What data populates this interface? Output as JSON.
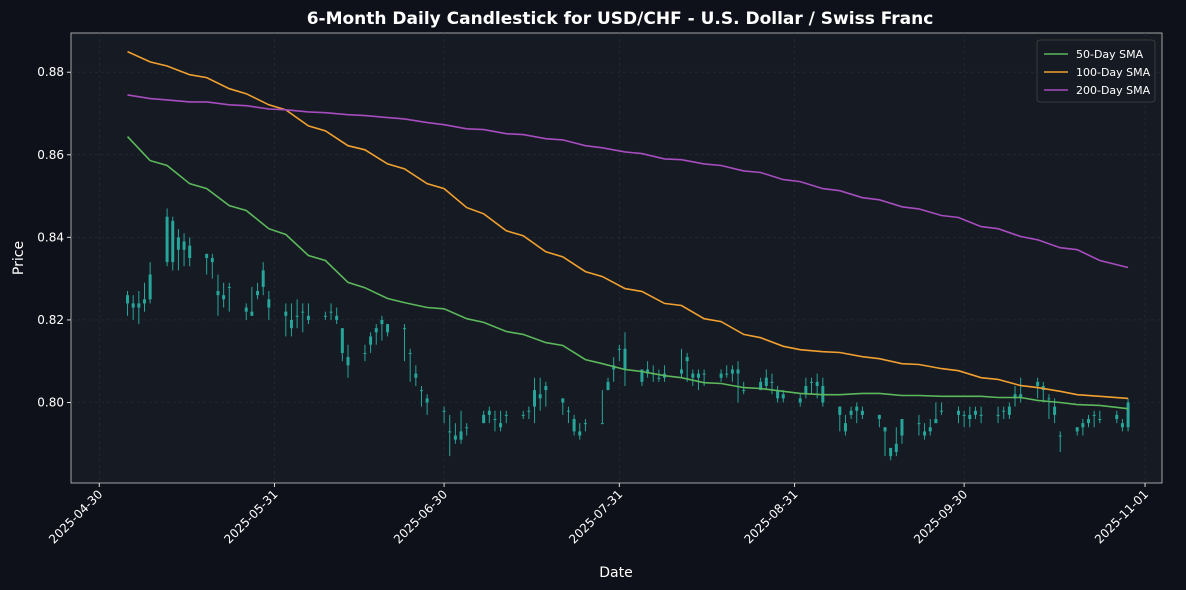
{
  "chart_data": {
    "type": "candlestick",
    "title": "6-Month Daily Candlestick for USD/CHF - U.S. Dollar / Swiss Franc",
    "xlabel": "Date",
    "ylabel": "Price",
    "xlim": [
      "2025-04-25",
      "2025-11-04"
    ],
    "ylim": [
      0.7805,
      0.8895
    ],
    "x_ticks": [
      "2025-04-30",
      "2025-05-31",
      "2025-06-30",
      "2025-07-31",
      "2025-08-31",
      "2025-09-30",
      "2025-11-01"
    ],
    "y_ticks": [
      0.8,
      0.82,
      0.84,
      0.86,
      0.88
    ],
    "y_tick_labels": [
      "0.80",
      "0.82",
      "0.84",
      "0.86",
      "0.88"
    ],
    "grid": true,
    "legend_position": "top-right",
    "colors": {
      "candle": "#26a69a",
      "sma50": "#5cb85c",
      "sma100": "#f0a030",
      "sma200": "#a64dbf",
      "background": "#0f111a",
      "plot_background": "#161a22"
    },
    "candle_columns": [
      "date",
      "open",
      "high",
      "low",
      "close"
    ],
    "candles": [
      [
        "2025-05-05",
        0.826,
        0.827,
        0.821,
        0.824
      ],
      [
        "2025-05-06",
        0.824,
        0.826,
        0.82,
        0.823
      ],
      [
        "2025-05-07",
        0.823,
        0.827,
        0.819,
        0.824
      ],
      [
        "2025-05-08",
        0.824,
        0.829,
        0.822,
        0.825
      ],
      [
        "2025-05-09",
        0.825,
        0.834,
        0.824,
        0.831
      ],
      [
        "2025-05-12",
        0.845,
        0.847,
        0.833,
        0.834
      ],
      [
        "2025-05-13",
        0.834,
        0.845,
        0.832,
        0.844
      ],
      [
        "2025-05-14",
        0.84,
        0.842,
        0.832,
        0.837
      ],
      [
        "2025-05-15",
        0.837,
        0.841,
        0.833,
        0.839
      ],
      [
        "2025-05-16",
        0.838,
        0.84,
        0.833,
        0.835
      ],
      [
        "2025-05-19",
        0.836,
        0.836,
        0.831,
        0.835
      ],
      [
        "2025-05-20",
        0.835,
        0.836,
        0.83,
        0.834
      ],
      [
        "2025-05-21",
        0.827,
        0.831,
        0.821,
        0.826
      ],
      [
        "2025-05-22",
        0.826,
        0.829,
        0.823,
        0.825
      ],
      [
        "2025-05-23",
        0.828,
        0.829,
        0.822,
        0.828
      ],
      [
        "2025-05-26",
        0.823,
        0.824,
        0.82,
        0.822
      ],
      [
        "2025-05-27",
        0.822,
        0.828,
        0.821,
        0.821
      ],
      [
        "2025-05-28",
        0.826,
        0.829,
        0.825,
        0.827
      ],
      [
        "2025-05-29",
        0.828,
        0.834,
        0.826,
        0.832
      ],
      [
        "2025-05-30",
        0.825,
        0.827,
        0.82,
        0.823
      ],
      [
        "2025-06-02",
        0.822,
        0.824,
        0.816,
        0.821
      ],
      [
        "2025-06-03",
        0.82,
        0.824,
        0.816,
        0.818
      ],
      [
        "2025-06-04",
        0.821,
        0.825,
        0.818,
        0.821
      ],
      [
        "2025-06-05",
        0.822,
        0.824,
        0.817,
        0.822
      ],
      [
        "2025-06-06",
        0.82,
        0.824,
        0.819,
        0.821
      ],
      [
        "2025-06-09",
        0.821,
        0.822,
        0.82,
        0.821
      ],
      [
        "2025-06-10",
        0.822,
        0.824,
        0.82,
        0.822
      ],
      [
        "2025-06-11",
        0.821,
        0.823,
        0.819,
        0.82
      ],
      [
        "2025-06-12",
        0.818,
        0.818,
        0.81,
        0.812
      ],
      [
        "2025-06-13",
        0.811,
        0.814,
        0.806,
        0.809
      ],
      [
        "2025-06-16",
        0.812,
        0.814,
        0.81,
        0.812
      ],
      [
        "2025-06-17",
        0.814,
        0.817,
        0.812,
        0.816
      ],
      [
        "2025-06-18",
        0.817,
        0.819,
        0.814,
        0.818
      ],
      [
        "2025-06-19",
        0.82,
        0.821,
        0.815,
        0.819
      ],
      [
        "2025-06-20",
        0.819,
        0.819,
        0.816,
        0.817
      ],
      [
        "2025-06-23",
        0.818,
        0.819,
        0.81,
        0.818
      ],
      [
        "2025-06-24",
        0.812,
        0.813,
        0.805,
        0.812
      ],
      [
        "2025-06-25",
        0.807,
        0.809,
        0.804,
        0.806
      ],
      [
        "2025-06-26",
        0.803,
        0.804,
        0.799,
        0.803
      ],
      [
        "2025-06-27",
        0.801,
        0.802,
        0.797,
        0.8
      ],
      [
        "2025-06-30",
        0.798,
        0.799,
        0.795,
        0.798
      ],
      [
        "2025-07-01",
        0.793,
        0.797,
        0.787,
        0.793
      ],
      [
        "2025-07-02",
        0.792,
        0.795,
        0.79,
        0.791
      ],
      [
        "2025-07-03",
        0.791,
        0.798,
        0.79,
        0.793
      ],
      [
        "2025-07-04",
        0.794,
        0.795,
        0.792,
        0.794
      ],
      [
        "2025-07-07",
        0.797,
        0.798,
        0.795,
        0.795
      ],
      [
        "2025-07-08",
        0.797,
        0.799,
        0.795,
        0.798
      ],
      [
        "2025-07-09",
        0.796,
        0.798,
        0.793,
        0.796
      ],
      [
        "2025-07-10",
        0.794,
        0.798,
        0.793,
        0.795
      ],
      [
        "2025-07-11",
        0.797,
        0.798,
        0.795,
        0.797
      ],
      [
        "2025-07-14",
        0.797,
        0.798,
        0.796,
        0.797
      ],
      [
        "2025-07-15",
        0.798,
        0.799,
        0.796,
        0.798
      ],
      [
        "2025-07-16",
        0.799,
        0.806,
        0.795,
        0.803
      ],
      [
        "2025-07-17",
        0.802,
        0.806,
        0.798,
        0.801
      ],
      [
        "2025-07-18",
        0.803,
        0.805,
        0.799,
        0.804
      ],
      [
        "2025-07-21",
        0.801,
        0.801,
        0.797,
        0.8
      ],
      [
        "2025-07-22",
        0.798,
        0.799,
        0.795,
        0.798
      ],
      [
        "2025-07-23",
        0.796,
        0.797,
        0.792,
        0.793
      ],
      [
        "2025-07-24",
        0.793,
        0.795,
        0.791,
        0.792
      ],
      [
        "2025-07-25",
        0.795,
        0.796,
        0.793,
        0.795
      ],
      [
        "2025-07-28",
        0.795,
        0.803,
        0.795,
        0.795
      ],
      [
        "2025-07-29",
        0.803,
        0.806,
        0.803,
        0.805
      ],
      [
        "2025-07-30",
        0.808,
        0.811,
        0.805,
        0.809
      ],
      [
        "2025-07-31",
        0.813,
        0.814,
        0.81,
        0.813
      ],
      [
        "2025-08-01",
        0.813,
        0.817,
        0.804,
        0.808
      ],
      [
        "2025-08-04",
        0.805,
        0.808,
        0.804,
        0.808
      ],
      [
        "2025-08-05",
        0.808,
        0.81,
        0.806,
        0.807
      ],
      [
        "2025-08-06",
        0.807,
        0.809,
        0.805,
        0.807
      ],
      [
        "2025-08-07",
        0.806,
        0.808,
        0.805,
        0.806
      ],
      [
        "2025-08-08",
        0.807,
        0.809,
        0.805,
        0.806
      ],
      [
        "2025-08-11",
        0.808,
        0.813,
        0.806,
        0.807
      ],
      [
        "2025-08-12",
        0.81,
        0.812,
        0.805,
        0.811
      ],
      [
        "2025-08-13",
        0.807,
        0.808,
        0.804,
        0.806
      ],
      [
        "2025-08-14",
        0.806,
        0.808,
        0.803,
        0.807
      ],
      [
        "2025-08-15",
        0.807,
        0.808,
        0.804,
        0.807
      ],
      [
        "2025-08-18",
        0.807,
        0.808,
        0.805,
        0.806
      ],
      [
        "2025-08-19",
        0.807,
        0.809,
        0.806,
        0.807
      ],
      [
        "2025-08-20",
        0.808,
        0.809,
        0.805,
        0.807
      ],
      [
        "2025-08-21",
        0.807,
        0.81,
        0.8,
        0.808
      ],
      [
        "2025-08-22",
        0.803,
        0.805,
        0.802,
        0.803
      ],
      [
        "2025-08-25",
        0.805,
        0.806,
        0.803,
        0.803
      ],
      [
        "2025-08-26",
        0.806,
        0.808,
        0.803,
        0.804
      ],
      [
        "2025-08-27",
        0.805,
        0.807,
        0.802,
        0.805
      ],
      [
        "2025-08-28",
        0.803,
        0.804,
        0.8,
        0.801
      ],
      [
        "2025-08-29",
        0.802,
        0.803,
        0.8,
        0.801
      ],
      [
        "2025-09-01",
        0.8,
        0.802,
        0.799,
        0.801
      ],
      [
        "2025-09-02",
        0.802,
        0.806,
        0.801,
        0.804
      ],
      [
        "2025-09-03",
        0.805,
        0.806,
        0.802,
        0.805
      ],
      [
        "2025-09-04",
        0.805,
        0.807,
        0.801,
        0.804
      ],
      [
        "2025-09-05",
        0.804,
        0.806,
        0.799,
        0.8
      ],
      [
        "2025-09-08",
        0.799,
        0.799,
        0.793,
        0.797
      ],
      [
        "2025-09-09",
        0.795,
        0.797,
        0.792,
        0.793
      ],
      [
        "2025-09-10",
        0.797,
        0.799,
        0.796,
        0.798
      ],
      [
        "2025-09-11",
        0.799,
        0.8,
        0.795,
        0.798
      ],
      [
        "2025-09-12",
        0.798,
        0.799,
        0.796,
        0.797
      ],
      [
        "2025-09-15",
        0.797,
        0.797,
        0.794,
        0.796
      ],
      [
        "2025-09-16",
        0.794,
        0.794,
        0.787,
        0.793
      ],
      [
        "2025-09-17",
        0.789,
        0.789,
        0.786,
        0.787
      ],
      [
        "2025-09-18",
        0.788,
        0.794,
        0.787,
        0.79
      ],
      [
        "2025-09-19",
        0.792,
        0.796,
        0.79,
        0.796
      ],
      [
        "2025-09-22",
        0.795,
        0.797,
        0.792,
        0.795
      ],
      [
        "2025-09-23",
        0.793,
        0.795,
        0.791,
        0.792
      ],
      [
        "2025-09-24",
        0.793,
        0.796,
        0.792,
        0.794
      ],
      [
        "2025-09-25",
        0.795,
        0.8,
        0.795,
        0.796
      ],
      [
        "2025-09-26",
        0.798,
        0.8,
        0.797,
        0.798
      ],
      [
        "2025-09-29",
        0.798,
        0.799,
        0.795,
        0.797
      ],
      [
        "2025-09-30",
        0.797,
        0.798,
        0.794,
        0.797
      ],
      [
        "2025-10-01",
        0.797,
        0.799,
        0.794,
        0.796
      ],
      [
        "2025-10-02",
        0.798,
        0.799,
        0.796,
        0.797
      ],
      [
        "2025-10-03",
        0.797,
        0.799,
        0.795,
        0.797
      ],
      [
        "2025-10-06",
        0.797,
        0.799,
        0.795,
        0.797
      ],
      [
        "2025-10-07",
        0.798,
        0.799,
        0.796,
        0.798
      ],
      [
        "2025-10-08",
        0.797,
        0.8,
        0.796,
        0.799
      ],
      [
        "2025-10-09",
        0.801,
        0.804,
        0.799,
        0.802
      ],
      [
        "2025-10-10",
        0.801,
        0.806,
        0.8,
        0.802
      ],
      [
        "2025-10-13",
        0.805,
        0.806,
        0.801,
        0.804
      ],
      [
        "2025-10-14",
        0.803,
        0.805,
        0.8,
        0.804
      ],
      [
        "2025-10-15",
        0.801,
        0.802,
        0.796,
        0.801
      ],
      [
        "2025-10-16",
        0.799,
        0.801,
        0.795,
        0.797
      ],
      [
        "2025-10-17",
        0.792,
        0.793,
        0.788,
        0.792
      ],
      [
        "2025-10-20",
        0.794,
        0.794,
        0.792,
        0.793
      ],
      [
        "2025-10-21",
        0.795,
        0.796,
        0.792,
        0.794
      ],
      [
        "2025-10-22",
        0.796,
        0.797,
        0.794,
        0.795
      ],
      [
        "2025-10-23",
        0.797,
        0.798,
        0.794,
        0.797
      ],
      [
        "2025-10-24",
        0.796,
        0.798,
        0.795,
        0.796
      ],
      [
        "2025-10-27",
        0.797,
        0.798,
        0.795,
        0.796
      ],
      [
        "2025-10-28",
        0.795,
        0.796,
        0.793,
        0.794
      ],
      [
        "2025-10-29",
        0.8,
        0.801,
        0.793,
        0.794
      ]
    ],
    "sma_dates": [
      "2025-05-05",
      "2025-05-09",
      "2025-05-12",
      "2025-05-16",
      "2025-05-19",
      "2025-05-23",
      "2025-05-26",
      "2025-05-30",
      "2025-06-02",
      "2025-06-06",
      "2025-06-09",
      "2025-06-13",
      "2025-06-16",
      "2025-06-20",
      "2025-06-23",
      "2025-06-27",
      "2025-06-30",
      "2025-07-04",
      "2025-07-07",
      "2025-07-11",
      "2025-07-14",
      "2025-07-18",
      "2025-07-21",
      "2025-07-25",
      "2025-07-28",
      "2025-08-01",
      "2025-08-04",
      "2025-08-08",
      "2025-08-11",
      "2025-08-15",
      "2025-08-18",
      "2025-08-22",
      "2025-08-25",
      "2025-08-29",
      "2025-09-01",
      "2025-09-05",
      "2025-09-08",
      "2025-09-12",
      "2025-09-15",
      "2025-09-19",
      "2025-09-22",
      "2025-09-26",
      "2025-09-29",
      "2025-10-03",
      "2025-10-06",
      "2025-10-10",
      "2025-10-13",
      "2025-10-17",
      "2025-10-20",
      "2025-10-24",
      "2025-10-29"
    ],
    "series": [
      {
        "name": "50-Day SMA",
        "values": [
          0.8644,
          0.8586,
          0.8574,
          0.853,
          0.8518,
          0.8477,
          0.8465,
          0.8421,
          0.8407,
          0.8356,
          0.8344,
          0.8291,
          0.8278,
          0.8252,
          0.8242,
          0.823,
          0.8227,
          0.8203,
          0.8194,
          0.8172,
          0.8165,
          0.8145,
          0.8138,
          0.8104,
          0.8094,
          0.808,
          0.8075,
          0.8065,
          0.806,
          0.8048,
          0.8046,
          0.8036,
          0.8034,
          0.8027,
          0.8022,
          0.8019,
          0.8019,
          0.8022,
          0.8022,
          0.8017,
          0.8017,
          0.8015,
          0.8015,
          0.8015,
          0.8012,
          0.8012,
          0.8005,
          0.8,
          0.7995,
          0.7993,
          0.7985
        ]
      },
      {
        "name": "100-Day SMA",
        "values": [
          0.885,
          0.8825,
          0.8815,
          0.8794,
          0.8787,
          0.876,
          0.8748,
          0.8721,
          0.8709,
          0.867,
          0.8658,
          0.8622,
          0.8612,
          0.8578,
          0.8566,
          0.853,
          0.8518,
          0.8472,
          0.8457,
          0.8416,
          0.8404,
          0.8365,
          0.8353,
          0.8317,
          0.8305,
          0.8276,
          0.8269,
          0.824,
          0.8235,
          0.8203,
          0.8196,
          0.8165,
          0.8157,
          0.8136,
          0.8128,
          0.8123,
          0.8121,
          0.8111,
          0.8106,
          0.8094,
          0.8092,
          0.8082,
          0.8077,
          0.806,
          0.8056,
          0.8041,
          0.8036,
          0.8027,
          0.8019,
          0.8015,
          0.801
        ]
      },
      {
        "name": "200-Day SMA",
        "values": [
          0.8745,
          0.8736,
          0.8733,
          0.8728,
          0.8728,
          0.8721,
          0.8719,
          0.8711,
          0.8709,
          0.8704,
          0.8702,
          0.8697,
          0.8695,
          0.869,
          0.8687,
          0.8678,
          0.8673,
          0.8663,
          0.8661,
          0.8651,
          0.8649,
          0.8639,
          0.8636,
          0.8622,
          0.8617,
          0.8607,
          0.8603,
          0.859,
          0.8588,
          0.8578,
          0.8574,
          0.8561,
          0.8557,
          0.854,
          0.8535,
          0.8518,
          0.8513,
          0.8496,
          0.8491,
          0.8474,
          0.8469,
          0.8453,
          0.8448,
          0.8426,
          0.8421,
          0.8402,
          0.8394,
          0.8375,
          0.837,
          0.8344,
          0.8327
        ]
      }
    ]
  }
}
